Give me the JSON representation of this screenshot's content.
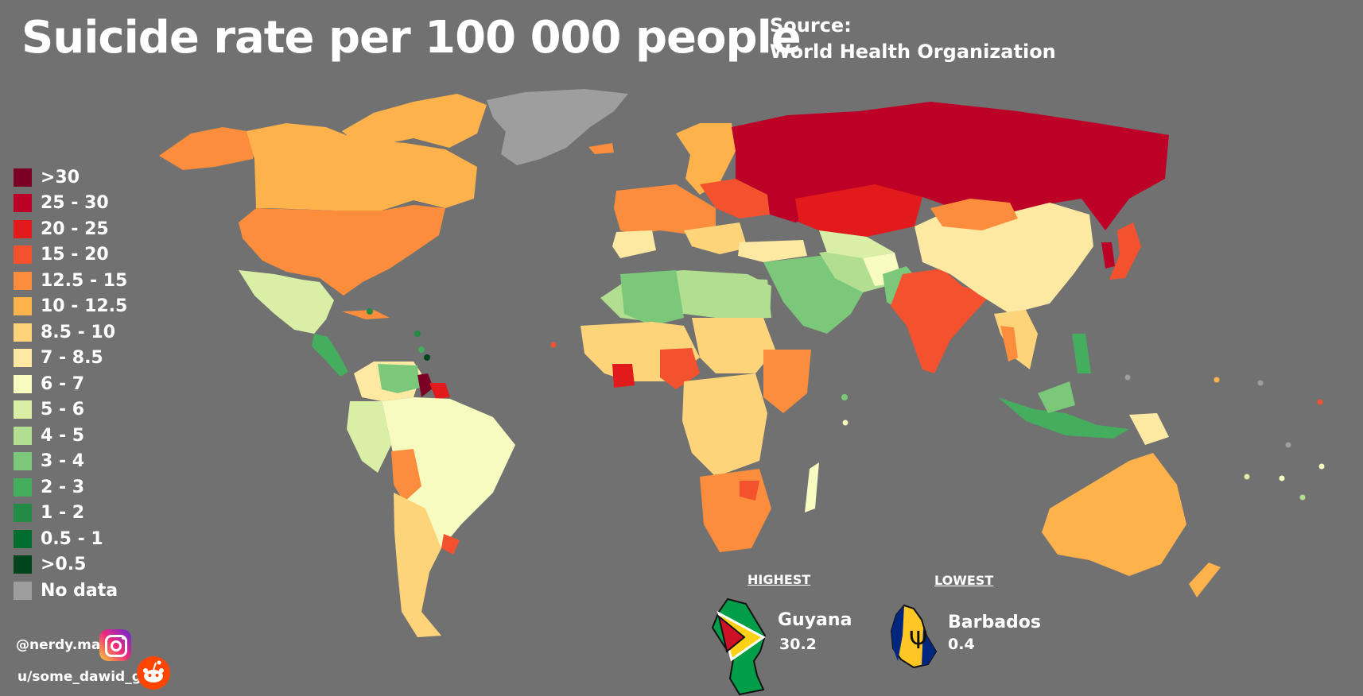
{
  "title": "Suicide rate per 100 000 people",
  "source": {
    "line1": "Source:",
    "line2": "World Health Organization"
  },
  "legend": [
    {
      "label": ">30",
      "color": "#7a0026"
    },
    {
      "label": "25 - 30",
      "color": "#bd0026"
    },
    {
      "label": "20 - 25",
      "color": "#e31a1c"
    },
    {
      "label": "15 - 20",
      "color": "#f4512e"
    },
    {
      "label": "12.5 - 15",
      "color": "#fc8d3c"
    },
    {
      "label": "10 - 12.5",
      "color": "#feb24c"
    },
    {
      "label": "8.5 - 10",
      "color": "#fed47a"
    },
    {
      "label": "7 - 8.5",
      "color": "#fee9a3"
    },
    {
      "label": "6 - 7",
      "color": "#f7fbc0"
    },
    {
      "label": "5 - 6",
      "color": "#d9efa5"
    },
    {
      "label": "4 - 5",
      "color": "#b1de8f"
    },
    {
      "label": "3 - 4",
      "color": "#7bc87a"
    },
    {
      "label": "2 - 3",
      "color": "#45ad5e"
    },
    {
      "label": "1 - 2",
      "color": "#238b45"
    },
    {
      "label": "0.5 - 1",
      "color": "#006d2c"
    },
    {
      "label": ">0.5",
      "color": "#00441b"
    },
    {
      "label": "No data",
      "color": "#9e9e9e"
    }
  ],
  "highest": {
    "heading": "HIGHEST",
    "country": "Guyana",
    "value": "30.2"
  },
  "lowest": {
    "heading": "LOWEST",
    "country": "Barbados",
    "value": "0.4"
  },
  "credits": {
    "instagram": "@nerdy.maps",
    "reddit": "u/some_dawid_guy"
  },
  "icons": {
    "instagram": "instagram-icon",
    "reddit": "reddit-icon"
  }
}
